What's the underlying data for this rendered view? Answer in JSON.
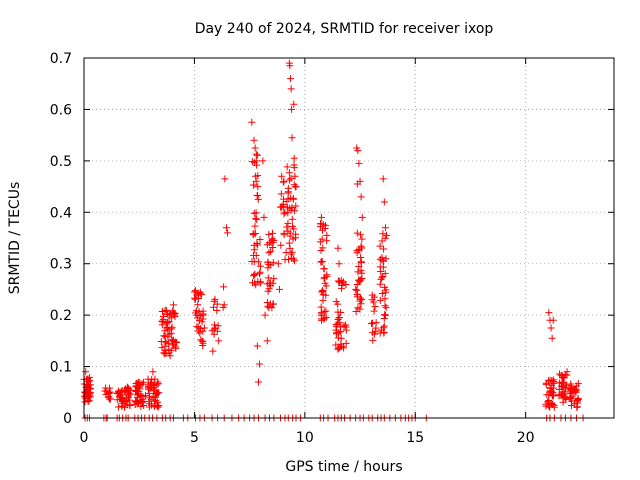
{
  "chart_data": {
    "type": "scatter",
    "title": "Day 240 of 2024, SRMTID for receiver ixop",
    "xlabel": "GPS time / hours",
    "ylabel": "SRMTID / TECUs",
    "xlim": [
      0,
      24
    ],
    "ylim": [
      0,
      0.7
    ],
    "xticks": [
      0,
      5,
      10,
      15,
      20
    ],
    "yticks": [
      0,
      0.1,
      0.2,
      0.3,
      0.4,
      0.5,
      0.6,
      0.7
    ],
    "ytick_labels": [
      "0",
      "0.1",
      "0.2",
      "0.3",
      "0.4",
      "0.5",
      "0.6",
      "0.7"
    ],
    "grid": true,
    "marker": "plus",
    "color": "#ff0000",
    "clusters": [
      {
        "x_range": [
          0.0,
          0.3
        ],
        "y_range": [
          0.03,
          0.08
        ],
        "count": 40
      },
      {
        "x_range": [
          0.9,
          1.2
        ],
        "y_range": [
          0.03,
          0.06
        ],
        "count": 12
      },
      {
        "x_range": [
          1.5,
          2.1
        ],
        "y_range": [
          0.02,
          0.06
        ],
        "count": 45
      },
      {
        "x_range": [
          2.3,
          2.8
        ],
        "y_range": [
          0.02,
          0.07
        ],
        "count": 40
      },
      {
        "x_range": [
          2.9,
          3.4
        ],
        "y_range": [
          0.02,
          0.08
        ],
        "count": 45
      },
      {
        "x_range": [
          3.5,
          4.2
        ],
        "y_range": [
          0.12,
          0.21
        ],
        "count": 55
      },
      {
        "x_range": [
          5.0,
          5.4
        ],
        "y_range": [
          0.14,
          0.25
        ],
        "count": 35
      },
      {
        "x_range": [
          5.8,
          6.1
        ],
        "y_range": [
          0.13,
          0.24
        ],
        "count": 12
      },
      {
        "x_range": [
          7.6,
          8.0
        ],
        "y_range": [
          0.25,
          0.52
        ],
        "count": 45
      },
      {
        "x_range": [
          8.3,
          8.6
        ],
        "y_range": [
          0.2,
          0.36
        ],
        "count": 35
      },
      {
        "x_range": [
          8.9,
          9.2
        ],
        "y_range": [
          0.3,
          0.47
        ],
        "count": 15
      },
      {
        "x_range": [
          9.2,
          9.6
        ],
        "y_range": [
          0.3,
          0.5
        ],
        "count": 40
      },
      {
        "x_range": [
          10.7,
          11.0
        ],
        "y_range": [
          0.18,
          0.38
        ],
        "count": 40
      },
      {
        "x_range": [
          11.4,
          11.9
        ],
        "y_range": [
          0.13,
          0.27
        ],
        "count": 40
      },
      {
        "x_range": [
          12.3,
          12.6
        ],
        "y_range": [
          0.2,
          0.36
        ],
        "count": 35
      },
      {
        "x_range": [
          13.0,
          13.3
        ],
        "y_range": [
          0.15,
          0.25
        ],
        "count": 12
      },
      {
        "x_range": [
          13.4,
          13.7
        ],
        "y_range": [
          0.15,
          0.36
        ],
        "count": 35
      },
      {
        "x_range": [
          20.9,
          21.3
        ],
        "y_range": [
          0.02,
          0.08
        ],
        "count": 35
      },
      {
        "x_range": [
          21.5,
          21.9
        ],
        "y_range": [
          0.03,
          0.09
        ],
        "count": 35
      },
      {
        "x_range": [
          22.0,
          22.4
        ],
        "y_range": [
          0.02,
          0.07
        ],
        "count": 35
      }
    ],
    "points": [
      [
        0.08,
        0.09
      ],
      [
        1.55,
        0.05
      ],
      [
        3.12,
        0.09
      ],
      [
        3.62,
        0.16
      ],
      [
        3.75,
        0.175
      ],
      [
        4.05,
        0.22
      ],
      [
        4.1,
        0.2
      ],
      [
        5.4,
        0.2
      ],
      [
        5.45,
        0.175
      ],
      [
        6.3,
        0.215
      ],
      [
        6.38,
        0.465
      ],
      [
        6.32,
        0.255
      ],
      [
        6.35,
        0.22
      ],
      [
        5.95,
        0.175
      ],
      [
        6.1,
        0.15
      ],
      [
        6.45,
        0.37
      ],
      [
        6.5,
        0.36
      ],
      [
        7.6,
        0.575
      ],
      [
        7.7,
        0.54
      ],
      [
        7.75,
        0.525
      ],
      [
        7.8,
        0.5
      ],
      [
        7.85,
        0.14
      ],
      [
        7.9,
        0.07
      ],
      [
        7.95,
        0.105
      ],
      [
        8.1,
        0.5
      ],
      [
        8.15,
        0.39
      ],
      [
        8.2,
        0.2
      ],
      [
        8.3,
        0.15
      ],
      [
        8.8,
        0.3
      ],
      [
        8.85,
        0.25
      ],
      [
        8.9,
        0.41
      ],
      [
        8.95,
        0.47
      ],
      [
        9.05,
        0.46
      ],
      [
        9.1,
        0.4
      ],
      [
        9.3,
        0.69
      ],
      [
        9.32,
        0.685
      ],
      [
        9.35,
        0.66
      ],
      [
        9.38,
        0.64
      ],
      [
        9.4,
        0.6
      ],
      [
        9.42,
        0.545
      ],
      [
        9.5,
        0.61
      ],
      [
        9.52,
        0.505
      ],
      [
        9.55,
        0.47
      ],
      [
        9.6,
        0.45
      ],
      [
        10.75,
        0.39
      ],
      [
        10.8,
        0.365
      ],
      [
        11.5,
        0.33
      ],
      [
        11.55,
        0.3
      ],
      [
        12.35,
        0.525
      ],
      [
        12.4,
        0.52
      ],
      [
        12.45,
        0.495
      ],
      [
        12.5,
        0.46
      ],
      [
        12.38,
        0.455
      ],
      [
        12.55,
        0.43
      ],
      [
        12.6,
        0.39
      ],
      [
        13.05,
        0.23
      ],
      [
        13.15,
        0.235
      ],
      [
        13.55,
        0.465
      ],
      [
        13.6,
        0.42
      ],
      [
        13.65,
        0.37
      ],
      [
        13.7,
        0.355
      ],
      [
        21.05,
        0.205
      ],
      [
        21.1,
        0.19
      ],
      [
        21.15,
        0.175
      ],
      [
        21.2,
        0.155
      ],
      [
        21.25,
        0.19
      ]
    ],
    "zero_points": [
      0.05,
      0.15,
      0.25,
      0.9,
      1.0,
      1.05,
      1.5,
      1.6,
      1.75,
      1.9,
      2.0,
      2.3,
      2.45,
      2.6,
      2.75,
      2.95,
      3.1,
      3.3,
      3.55,
      3.7,
      3.9,
      4.05,
      4.5,
      4.7,
      5.05,
      5.25,
      5.45,
      5.8,
      6.05,
      6.35,
      6.7,
      7.0,
      7.25,
      7.5,
      7.7,
      7.9,
      8.2,
      8.4,
      8.6,
      8.9,
      9.1,
      9.25,
      9.45,
      9.6,
      9.8,
      10.7,
      10.85,
      11.05,
      11.35,
      11.5,
      11.65,
      11.8,
      12.05,
      12.3,
      12.5,
      12.65,
      12.9,
      13.05,
      13.3,
      13.45,
      13.6,
      13.85,
      14.1,
      14.35,
      14.55,
      14.7,
      14.85,
      15.0,
      15.5,
      20.95,
      21.1,
      21.3,
      21.6,
      21.8,
      22.05,
      22.3,
      22.6
    ]
  }
}
